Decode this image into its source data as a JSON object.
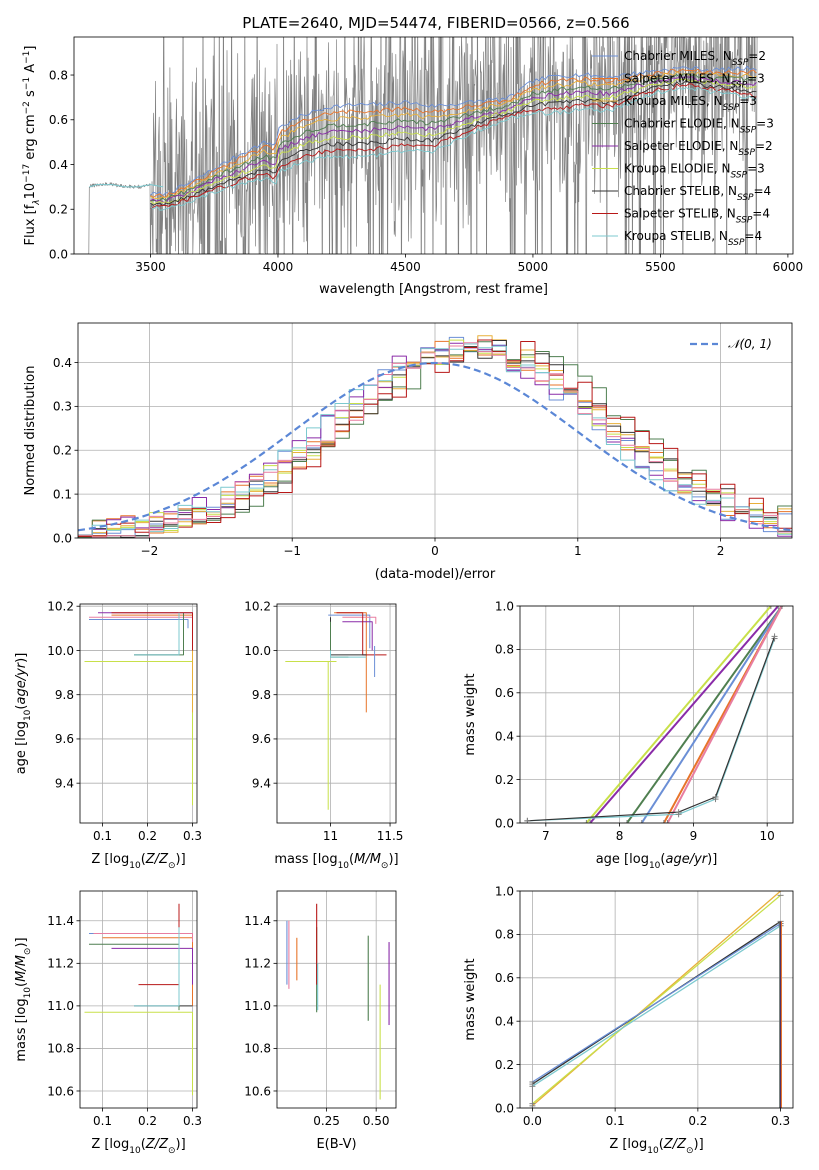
{
  "figure": {
    "title": "PLATE=2640, MJD=54474, FIBERID=0566, z=0.566"
  },
  "palette": {
    "chabrier_miles": "#6b8fd6",
    "salpeter_miles": "#e8742a",
    "kroupa_miles": "#e8b03a",
    "chabrier_elodie": "#4f7f50",
    "salpeter_elodie": "#8a2ba8",
    "kroupa_elodie": "#c8e04a",
    "chabrier_stelib": "#333333",
    "salpeter_stelib": "#b81818",
    "kroupa_stelib": "#7cc9cf",
    "pink": "#e87ea1",
    "data_gray": "#808080",
    "gauss": "#5b87d6"
  },
  "chart_data": [
    {
      "id": "spectrum",
      "type": "line",
      "title": "",
      "xlabel": "wavelength [Angstrom, rest frame]",
      "ylabel": "Flux [f_λ 10^-17 erg cm^-2 s^-1 A^-1]",
      "ylabel_parts": {
        "base": "Flux [f",
        "lambda": "λ",
        "mid": "10",
        "e1": "−17",
        "erg": " erg cm",
        "e2": "−2",
        "s": " s",
        "e3": "−1",
        "a": " A",
        "e4": "−1",
        "end": "]"
      },
      "xlim": [
        3200,
        6020
      ],
      "ylim": [
        0,
        0.97
      ],
      "xticks": [
        3500,
        4000,
        4500,
        5000,
        5500,
        6000
      ],
      "yticks": [
        0.0,
        0.2,
        0.4,
        0.6,
        0.8
      ],
      "ytick_labels": [
        "0.0",
        "0.2",
        "0.4",
        "0.6",
        "0.8"
      ],
      "legend_position": "right",
      "legend": [
        {
          "name": "Chabrier MILES",
          "n": "2",
          "color_key": "chabrier_miles"
        },
        {
          "name": "Salpeter MILES",
          "n": "3",
          "color_key": "salpeter_miles"
        },
        {
          "name": "Kroupa MILES",
          "n": "3",
          "color_key": "kroupa_miles"
        },
        {
          "name": "Chabrier ELODIE",
          "n": "3",
          "color_key": "chabrier_elodie"
        },
        {
          "name": "Salpeter ELODIE",
          "n": "2",
          "color_key": "salpeter_elodie"
        },
        {
          "name": "Kroupa ELODIE",
          "n": "3",
          "color_key": "kroupa_elodie"
        },
        {
          "name": "Chabrier STELIB",
          "n": "4",
          "color_key": "chabrier_stelib"
        },
        {
          "name": "Salpeter STELIB",
          "n": "4",
          "color_key": "salpeter_stelib"
        },
        {
          "name": "Kroupa STELIB",
          "n": "4",
          "color_key": "kroupa_stelib"
        }
      ],
      "legend_sub": "SSP",
      "legend_prefix": "N",
      "legend_eq": "=",
      "model_blue": {
        "x": [
          3260,
          3290,
          3350,
          3400,
          3450,
          3500,
          3550
        ],
        "y": [
          0.3,
          0.31,
          0.31,
          0.3,
          0.3,
          0.31,
          0.3
        ]
      },
      "model_upper": {
        "x": [
          3560,
          3650,
          3750,
          3850,
          3950,
          3990,
          4000,
          4100,
          4200,
          4300,
          4400,
          4500,
          4600,
          4700,
          4800,
          4900,
          5000,
          5100,
          5200,
          5300,
          5400,
          5500,
          5600,
          5700,
          5800,
          5880
        ],
        "y": [
          0.28,
          0.33,
          0.4,
          0.47,
          0.53,
          0.52,
          0.6,
          0.66,
          0.7,
          0.71,
          0.71,
          0.72,
          0.7,
          0.7,
          0.71,
          0.71,
          0.8,
          0.83,
          0.83,
          0.82,
          0.83,
          0.84,
          0.85,
          0.84,
          0.85,
          0.86
        ]
      },
      "model_lower": {
        "x": [
          3560,
          3650,
          3750,
          3850,
          3950,
          3990,
          4000,
          4100,
          4200,
          4300,
          4400,
          4500,
          4600,
          4700,
          4800,
          4900,
          5000,
          5100,
          5200,
          5300,
          5400,
          5500,
          5600,
          5700,
          5800,
          5880
        ],
        "y": [
          0.2,
          0.23,
          0.27,
          0.3,
          0.33,
          0.3,
          0.35,
          0.4,
          0.42,
          0.42,
          0.43,
          0.45,
          0.44,
          0.5,
          0.55,
          0.6,
          0.62,
          0.62,
          0.64,
          0.63,
          0.68,
          0.72,
          0.74,
          0.72,
          0.7,
          0.68
        ]
      }
    },
    {
      "id": "residuals",
      "type": "line",
      "title": "",
      "xlabel": "(data-model)/error",
      "ylabel": "Normed distribution",
      "xlim": [
        -2.5,
        2.5
      ],
      "ylim": [
        0,
        0.49
      ],
      "xticks": [
        -2,
        -1,
        0,
        1,
        2
      ],
      "xtick_labels": [
        "−2",
        "−1",
        "0",
        "1",
        "2"
      ],
      "yticks": [
        0.0,
        0.1,
        0.2,
        0.3,
        0.4
      ],
      "ytick_labels": [
        "0.0",
        "0.1",
        "0.2",
        "0.3",
        "0.4"
      ],
      "grid": true,
      "legend_position": "top-right",
      "legend": [
        {
          "name": "𝒩(0, 1)",
          "color_key": "gauss",
          "style": "dashed"
        }
      ],
      "bin_width": 0.1
    },
    {
      "id": "age_vs_Z",
      "type": "scatter",
      "xlabel_parts": {
        "a": "Z [log",
        "sub": "10",
        "b": "(",
        "i": "Z/Z",
        "sun": "⊙",
        "c": ")]"
      },
      "ylabel_parts": {
        "a": "age  [log",
        "sub": "10",
        "b": "(",
        "i": "age/yr",
        "c": ")]"
      },
      "xlim": [
        0.05,
        0.31
      ],
      "ylim": [
        9.22,
        10.21
      ],
      "xticks": [
        0.1,
        0.2,
        0.3
      ],
      "yticks": [
        9.4,
        9.6,
        9.8,
        10.0,
        10.2
      ],
      "ytick_labels": [
        "9.4",
        "9.6",
        "9.8",
        "10.0",
        "10.2"
      ],
      "grid": true
    },
    {
      "id": "age_vs_mass",
      "type": "scatter",
      "xlabel_parts": {
        "a": "mass [log",
        "sub": "10",
        "b": "(",
        "i": "M/M",
        "sun": "⊙",
        "c": ")]"
      },
      "xlim": [
        10.55,
        11.55
      ],
      "ylim": [
        9.22,
        10.21
      ],
      "xticks": [
        11.0,
        11.5
      ],
      "yticks": [
        9.4,
        9.6,
        9.8,
        10.0,
        10.2
      ],
      "ytick_labels": [
        "9.4",
        "9.6",
        "9.8",
        "10.0",
        "10.2"
      ],
      "grid": true
    },
    {
      "id": "weight_vs_age",
      "type": "line",
      "xlabel_parts": {
        "a": "age  [log",
        "sub": "10",
        "b": "(",
        "i": "age/yr",
        "c": ")]"
      },
      "ylabel": "mass weight",
      "xlim": [
        6.65,
        10.35
      ],
      "ylim": [
        0,
        1
      ],
      "xticks": [
        7,
        8,
        9,
        10
      ],
      "yticks": [
        0.0,
        0.2,
        0.4,
        0.6,
        0.8,
        1.0
      ],
      "ytick_labels": [
        "0.0",
        "0.2",
        "0.4",
        "0.6",
        "0.8",
        "1.0"
      ],
      "grid": true,
      "series": [
        {
          "color_key": "kroupa_elodie",
          "x": [
            7.55,
            10.05
          ],
          "y": [
            0,
            1.0
          ]
        },
        {
          "color_key": "salpeter_elodie",
          "x": [
            7.6,
            10.15
          ],
          "y": [
            0,
            1.0
          ]
        },
        {
          "color_key": "chabrier_elodie",
          "x": [
            8.1,
            10.2
          ],
          "y": [
            0,
            1.0
          ]
        },
        {
          "color_key": "chabrier_miles",
          "x": [
            8.3,
            10.2
          ],
          "y": [
            0,
            1.0
          ]
        },
        {
          "color_key": "salpeter_miles",
          "x": [
            8.6,
            10.2
          ],
          "y": [
            0,
            1.0
          ]
        },
        {
          "color_key": "pink",
          "x": [
            8.65,
            10.2
          ],
          "y": [
            0,
            1.0
          ]
        },
        {
          "color_key": "kroupa_stelib",
          "x": [
            6.75,
            8.8,
            9.3,
            10.1
          ],
          "y": [
            0.01,
            0.04,
            0.11,
            0.85
          ]
        },
        {
          "color_key": "chabrier_stelib",
          "x": [
            6.75,
            8.8,
            9.3,
            10.1
          ],
          "y": [
            0.01,
            0.05,
            0.12,
            0.86
          ]
        }
      ]
    },
    {
      "id": "mass_vs_Z",
      "type": "scatter",
      "xlabel_parts": {
        "a": "Z [log",
        "sub": "10",
        "b": "(",
        "i": "Z/Z",
        "sun": "⊙",
        "c": ")]"
      },
      "ylabel_parts": {
        "a": "mass [log",
        "sub": "10",
        "b": "(",
        "i": "M/M",
        "sun": "⊙",
        "c": ")]"
      },
      "xlim": [
        0.05,
        0.31
      ],
      "ylim": [
        10.52,
        11.54
      ],
      "xticks": [
        0.1,
        0.2,
        0.3
      ],
      "yticks": [
        10.6,
        10.8,
        11.0,
        11.2,
        11.4
      ],
      "ytick_labels": [
        "10.6",
        "10.8",
        "11.0",
        "11.2",
        "11.4"
      ],
      "grid": true
    },
    {
      "id": "mass_vs_ebv",
      "type": "scatter",
      "xlabel": "E(B-V)",
      "xlim": [
        0.0,
        0.6
      ],
      "ylim": [
        10.52,
        11.54
      ],
      "xticks": [
        0.25,
        0.5
      ],
      "xtick_labels": [
        "0.25",
        "0.50"
      ],
      "yticks": [
        10.6,
        10.8,
        11.0,
        11.2,
        11.4
      ],
      "ytick_labels": [
        "10.6",
        "10.8",
        "11.0",
        "11.2",
        "11.4"
      ],
      "grid": true
    },
    {
      "id": "weight_vs_Z",
      "type": "line",
      "xlabel_parts": {
        "a": "Z [log",
        "sub": "10",
        "b": "(",
        "i": "Z/Z",
        "sun": "⊙",
        "c": ")]"
      },
      "ylabel": "mass weight",
      "xlim": [
        -0.015,
        0.315
      ],
      "ylim": [
        0,
        1
      ],
      "xticks": [
        0.0,
        0.1,
        0.2,
        0.3
      ],
      "xtick_labels": [
        "0.0",
        "0.1",
        "0.2",
        "0.3"
      ],
      "yticks": [
        0.0,
        0.2,
        0.4,
        0.6,
        0.8,
        1.0
      ],
      "ytick_labels": [
        "0.0",
        "0.2",
        "0.4",
        "0.6",
        "0.8",
        "1.0"
      ],
      "grid": true,
      "series": [
        {
          "color_key": "kroupa_miles",
          "x": [
            0.0,
            0.3
          ],
          "y": [
            0.01,
            1.0
          ]
        },
        {
          "color_key": "kroupa_elodie",
          "x": [
            0.0,
            0.3
          ],
          "y": [
            0.02,
            0.98
          ]
        },
        {
          "color_key": "chabrier_stelib",
          "x": [
            0.0,
            0.3
          ],
          "y": [
            0.11,
            0.86
          ]
        },
        {
          "color_key": "kroupa_stelib",
          "x": [
            0.0,
            0.3
          ],
          "y": [
            0.1,
            0.84
          ]
        },
        {
          "color_key": "chabrier_miles",
          "x": [
            0.0,
            0.3
          ],
          "y": [
            0.12,
            0.85
          ]
        }
      ]
    }
  ]
}
